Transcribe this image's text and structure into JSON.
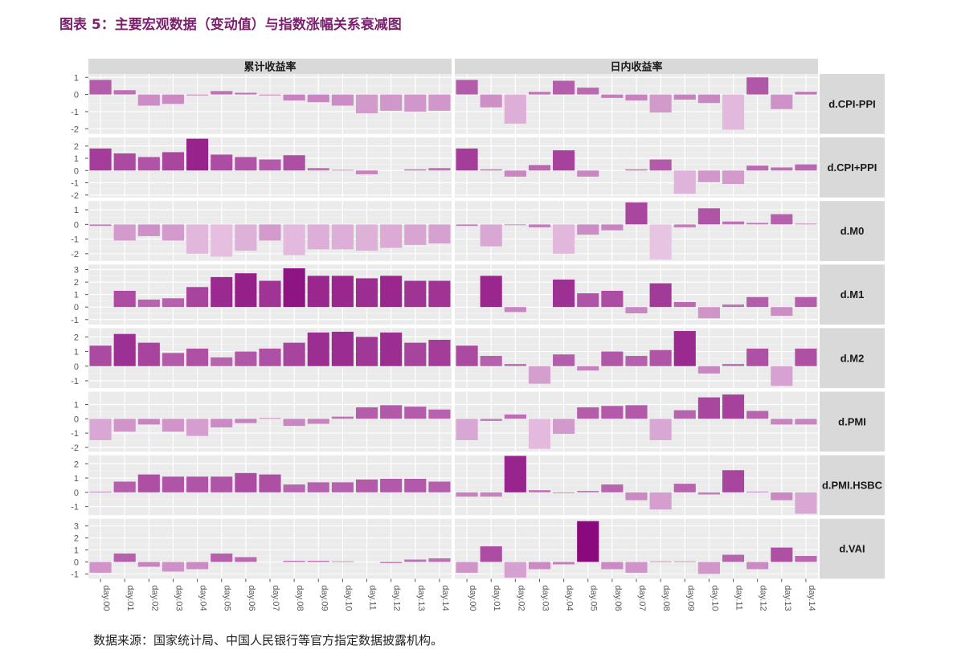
{
  "title": "图表 5：主要宏观数据（变动值）与指数涨幅关系衰减图",
  "source": "数据来源：国家统计局、中国人民银行等官方指定数据披露机构。",
  "colors": {
    "low": "#e8c4e3",
    "high": "#8a0a7e",
    "strip": "#d9d9d9",
    "panel": "#ebebeb"
  },
  "chart_data": {
    "type": "bar",
    "facet_columns": [
      "累计收益率",
      "日内收益率"
    ],
    "categories": [
      "day.00",
      "day.01",
      "day.02",
      "day.03",
      "day.04",
      "day.05",
      "day.06",
      "day.07",
      "day.08",
      "day.09",
      "day.10",
      "day.11",
      "day.12",
      "day.13",
      "day.14"
    ],
    "rows": [
      {
        "name": "d.CPI-PPI",
        "ylim": [
          -2.3,
          1.2
        ],
        "ticks": [
          1,
          0,
          -1,
          -2
        ],
        "cumulative": [
          0.85,
          0.25,
          -0.65,
          -0.55,
          -0.05,
          0.2,
          0.1,
          -0.05,
          -0.35,
          -0.45,
          -0.65,
          -1.1,
          -0.95,
          -1.0,
          -0.95
        ],
        "intraday": [
          0.85,
          -0.75,
          -1.7,
          0.15,
          0.8,
          0.4,
          -0.2,
          -0.35,
          -1.05,
          -0.3,
          -0.5,
          -2.05,
          1.0,
          -0.85,
          0.15
        ]
      },
      {
        "name": "d.CPI+PPI",
        "ylim": [
          -2.2,
          2.7
        ],
        "ticks": [
          2,
          1,
          0,
          -1,
          -2
        ],
        "cumulative": [
          1.8,
          1.4,
          1.1,
          1.5,
          2.6,
          1.3,
          1.1,
          0.9,
          1.25,
          0.2,
          0.05,
          -0.3,
          0.0,
          0.1,
          0.2
        ],
        "intraday": [
          1.8,
          0.1,
          -0.5,
          0.45,
          1.65,
          -0.5,
          0.0,
          0.1,
          0.9,
          -1.9,
          -0.95,
          -1.1,
          0.4,
          0.25,
          0.5
        ]
      },
      {
        "name": "d.M0",
        "ylim": [
          -2.5,
          1.6
        ],
        "ticks": [
          1,
          0,
          -1,
          -2
        ],
        "cumulative": [
          -0.1,
          -1.1,
          -0.8,
          -1.1,
          -2.0,
          -2.2,
          -1.8,
          -1.1,
          -2.1,
          -1.7,
          -1.7,
          -1.8,
          -1.6,
          -1.4,
          -1.3
        ],
        "intraday": [
          -0.1,
          -1.5,
          -0.05,
          -0.2,
          -2.0,
          -0.7,
          -0.4,
          1.5,
          -2.4,
          -0.2,
          1.1,
          0.2,
          0.1,
          0.7,
          0.05
        ]
      },
      {
        "name": "d.M1",
        "ylim": [
          -1.4,
          3.4
        ],
        "ticks": [
          3,
          2,
          1,
          0,
          -1
        ],
        "cumulative": [
          0.0,
          1.3,
          0.6,
          0.7,
          1.6,
          2.4,
          2.7,
          2.1,
          3.1,
          2.5,
          2.5,
          2.3,
          2.5,
          2.1,
          2.1
        ],
        "intraday": [
          0.0,
          2.5,
          -0.4,
          0.0,
          2.2,
          1.1,
          1.3,
          -0.5,
          1.9,
          0.4,
          -0.9,
          0.2,
          0.8,
          -0.7,
          0.8
        ]
      },
      {
        "name": "d.M2",
        "ylim": [
          -1.5,
          2.6
        ],
        "ticks": [
          2,
          1,
          0,
          -1
        ],
        "cumulative": [
          1.4,
          2.2,
          1.6,
          0.9,
          1.2,
          0.6,
          1.0,
          1.2,
          1.6,
          2.3,
          2.35,
          2.0,
          2.3,
          1.6,
          1.8
        ],
        "intraday": [
          1.4,
          0.7,
          0.15,
          -1.2,
          0.8,
          -0.3,
          1.0,
          0.7,
          1.1,
          2.4,
          -0.5,
          0.15,
          1.2,
          -1.35,
          1.2
        ]
      },
      {
        "name": "d.PMI",
        "ylim": [
          -2.3,
          1.9
        ],
        "ticks": [
          1,
          0,
          -1,
          -2
        ],
        "cumulative": [
          -1.5,
          -0.9,
          -0.4,
          -0.9,
          -1.2,
          -0.6,
          -0.3,
          0.05,
          -0.5,
          -0.35,
          0.15,
          0.8,
          0.95,
          0.85,
          0.65
        ],
        "intraday": [
          -1.5,
          -0.15,
          0.3,
          -2.1,
          -1.05,
          0.8,
          0.9,
          0.95,
          -1.5,
          0.6,
          1.5,
          1.7,
          0.55,
          -0.4,
          -0.4
        ]
      },
      {
        "name": "d.PMI.HSBC",
        "ylim": [
          -1.6,
          2.6
        ],
        "ticks": [
          2,
          1,
          0,
          -1
        ],
        "cumulative": [
          0.05,
          0.75,
          1.25,
          1.1,
          1.1,
          1.1,
          1.35,
          1.25,
          0.55,
          0.7,
          0.7,
          0.9,
          0.95,
          0.95,
          0.75
        ],
        "intraday": [
          -0.3,
          -0.3,
          2.55,
          0.15,
          -0.05,
          0.1,
          0.55,
          -0.55,
          -1.2,
          0.6,
          -0.15,
          1.55,
          0.05,
          -0.55,
          -1.5
        ]
      },
      {
        "name": "d.VAI",
        "ylim": [
          -1.4,
          3.6
        ],
        "ticks": [
          3,
          2,
          1,
          0,
          -1
        ],
        "cumulative": [
          -0.9,
          0.7,
          -0.4,
          -0.8,
          -0.6,
          0.7,
          0.4,
          0.0,
          0.1,
          0.1,
          0.05,
          0.0,
          -0.1,
          0.2,
          0.3
        ],
        "intraday": [
          -0.9,
          1.3,
          -1.3,
          -0.6,
          -0.2,
          3.4,
          -0.6,
          -0.9,
          0.05,
          0.05,
          -1.0,
          0.6,
          -0.6,
          1.2,
          0.5
        ]
      }
    ]
  }
}
